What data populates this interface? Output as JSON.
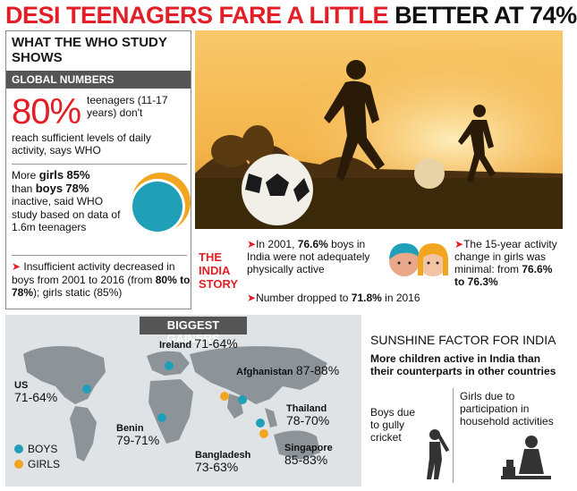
{
  "headline": {
    "part1": "DESI TEENAGERS FARE A LITTLE",
    "part2": "BETTER AT 74%"
  },
  "who_panel": {
    "title": "WHAT THE WHO STUDY SHOWS",
    "section": "GLOBAL NUMBERS",
    "big_stat": "80%",
    "big_text_a": "teenagers (11-17 years) don't",
    "big_text_b": "reach sufficient levels of daily activity, says WHO",
    "girls_pre": "More ",
    "girls_label": "girls",
    "girls_value": "85%",
    "than": "than ",
    "boys_label": "boys",
    "boys_value": "78%",
    "rest": "inactive, said WHO study based on data of 1.6m teenagers",
    "insuff_a": "Insufficient activity decreased in boys from 2001 to 2016 (from ",
    "insuff_b": "80% to 78%",
    "insuff_c": "); girls static (85%)"
  },
  "india_story": {
    "label": "THE INDIA STORY",
    "s1_pre": "In 2001, ",
    "s1_val": "76.6%",
    "s1_post": " boys in India were not adequately physically active",
    "s2_pre": "Number dropped to ",
    "s2_val": "71.8%",
    "s2_post": " in 2016",
    "s3_pre": "The 15-year activity change in girls was minimal: from ",
    "s3_val": "76.6% to 76.3%"
  },
  "gainers": {
    "title": "BIGGEST GAINERS",
    "countries": [
      {
        "name": "US",
        "value": "71-64%"
      },
      {
        "name": "Ireland",
        "value": "71-64%"
      },
      {
        "name": "Afghanistan",
        "value": "87-88%"
      },
      {
        "name": "Thailand",
        "value": "78-70%"
      },
      {
        "name": "Benin",
        "value": "79-71%"
      },
      {
        "name": "Bangladesh",
        "value": "73-63%"
      },
      {
        "name": "Singapore",
        "value": "85-83%"
      }
    ],
    "legend_boys": "BOYS",
    "legend_girls": "GIRLS"
  },
  "sunshine": {
    "title": "SUNSHINE FACTOR FOR INDIA",
    "subtitle": "More children active in India than their counterparts in other countries",
    "boys": "Boys due to gully cricket",
    "girls": "Girls due to participation in household activities"
  },
  "colors": {
    "red": "#e41e26",
    "boys": "#1fa0b8",
    "girls": "#f2a51f"
  }
}
